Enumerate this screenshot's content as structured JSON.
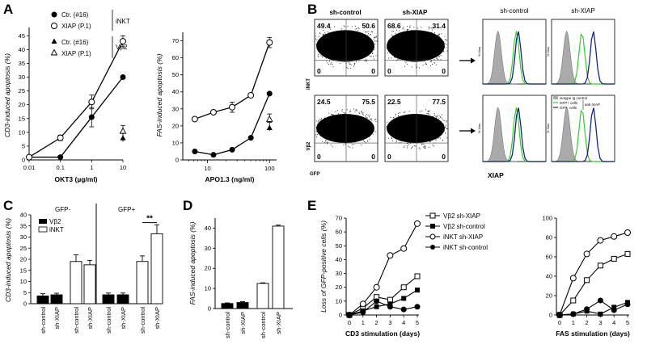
{
  "panels": {
    "A": {
      "letter": "A",
      "legend": {
        "group1": "iNKT",
        "group2": "Vβ2",
        "items": [
          "Ctr. (#16)",
          "XIAP (P.1)",
          "Ctr. (#16)",
          "XIAP (P.1)"
        ]
      },
      "left": {
        "ylabel": "CD3-induced apoptosis (%)",
        "xlabel": "OKT3 (µg/ml)",
        "xticks": [
          "0.01",
          "0.1",
          "1",
          "10"
        ],
        "yticks": [
          "0",
          "5",
          "10",
          "15",
          "20",
          "25",
          "30",
          "35",
          "40",
          "45"
        ]
      },
      "right": {
        "ylabel": "FAS-induced apoptosis (%)",
        "xlabel": "APO1.3 (ng/ml)",
        "xticks": [
          "10",
          "100"
        ],
        "yticks": [
          "0",
          "10",
          "20",
          "30",
          "40",
          "50",
          "60",
          "70"
        ]
      }
    },
    "B": {
      "letter": "B",
      "col1": "sh-control",
      "col2": "sh-XIAP",
      "row1": "iNKT",
      "row2": "Vβ2",
      "xaxis": "GFP",
      "quads": {
        "r1c1": [
          "49.4",
          "50.6",
          "0",
          "0"
        ],
        "r1c2": [
          "68.6",
          "31.4",
          "0",
          "0"
        ],
        "r2c1": [
          "24.5",
          "75.5",
          "0",
          "0"
        ],
        "r2c2": [
          "22.5",
          "77.5",
          "0",
          "0"
        ]
      },
      "hist_col1": "sh-control",
      "hist_col2": "sh-XIAP",
      "hist_y": "% Max",
      "hist_x": "XIAP",
      "hist_legend": [
        "isotype Ig control",
        "GFP+ cells",
        "GFP- cells",
        "anti-XIAP"
      ]
    },
    "C": {
      "letter": "C",
      "group_minus": "GFP-",
      "group_plus": "GFP+",
      "legend": [
        "Vβ2",
        "iNKT"
      ],
      "ylabel": "CD3-induced apoptosis (%)",
      "yticks": [
        "0",
        "5",
        "10",
        "15",
        "20",
        "25",
        "30",
        "35",
        "40"
      ],
      "xticks": [
        "sh-control",
        "sh-XIAP",
        "sh-control",
        "sh-XIAP",
        "sh-control",
        "sh-XIAP",
        "sh-control",
        "sh-XIAP"
      ],
      "sig": "**"
    },
    "D": {
      "letter": "D",
      "ylabel": "FAS-induced apoptosis (%)",
      "yticks": [
        "0",
        "10",
        "20",
        "30",
        "40"
      ],
      "xticks": [
        "sh-control",
        "sh-XIAP",
        "sh-control",
        "sh-XIAP"
      ]
    },
    "E": {
      "letter": "E",
      "ylabel": "Loss of GFP-positive cells (%)",
      "left_xlabel": "CD3 stimulation (days)",
      "right_xlabel": "FAS stimulation (days)",
      "xticks": [
        "0",
        "1",
        "2",
        "3",
        "4",
        "5"
      ],
      "left_yticks": [
        "0",
        "10",
        "20",
        "30",
        "40",
        "50",
        "60",
        "70"
      ],
      "right_yticks": [
        "0",
        "20",
        "40",
        "60",
        "80",
        "100"
      ],
      "legend": [
        "Vβ2 sh-XIAP",
        "Vβ2 sh-control",
        "iNKT sh-XIAP",
        "iNKT sh-control"
      ]
    }
  },
  "chart_data": [
    {
      "type": "line",
      "panel": "A-left",
      "x": [
        0.01,
        0.1,
        1,
        10
      ],
      "series": [
        {
          "name": "Ctr. (#16)",
          "values": [
            1,
            1,
            15.5,
            30
          ]
        },
        {
          "name": "XIAP (P.1)",
          "values": [
            1,
            8,
            21,
            43
          ]
        }
      ],
      "extra_points": [
        {
          "name": "Ctr. (#16)",
          "x": 10,
          "y": 8
        },
        {
          "name": "XIAP (P.1)",
          "x": 10,
          "y": 10.5
        }
      ],
      "ylim": [
        0,
        48
      ],
      "xlim": [
        0.01,
        10
      ],
      "xscale": "log"
    },
    {
      "type": "line",
      "panel": "A-right",
      "x": [
        6.25,
        12.5,
        25,
        50,
        100
      ],
      "series": [
        {
          "name": "Ctr. (#16)",
          "values": [
            5,
            3,
            6,
            13,
            39
          ]
        },
        {
          "name": "XIAP (P.1)",
          "values": [
            24,
            28,
            31,
            38,
            69
          ]
        }
      ],
      "extra_points": [
        {
          "name": "Ctr. (#16)",
          "x": 100,
          "y": 19
        },
        {
          "name": "XIAP (P.1)",
          "x": 100,
          "y": 24
        }
      ],
      "ylim": [
        0,
        75
      ],
      "xscale": "log"
    },
    {
      "type": "bar",
      "panel": "C",
      "categories": [
        "sh-control",
        "sh-XIAP",
        "sh-control",
        "sh-XIAP",
        "sh-control",
        "sh-XIAP",
        "sh-control",
        "sh-XIAP"
      ],
      "values": [
        3.5,
        4,
        19,
        17.5,
        4,
        4,
        19,
        31.5
      ],
      "errors": [
        1,
        0.7,
        3,
        2,
        0.8,
        0.8,
        2.5,
        4
      ],
      "colors": [
        "#000000",
        "#000000",
        "#ffffff",
        "#ffffff",
        "#000000",
        "#000000",
        "#ffffff",
        "#ffffff"
      ],
      "ylim": [
        0,
        40
      ]
    },
    {
      "type": "bar",
      "panel": "D",
      "categories": [
        "sh-control",
        "sh-XIAP",
        "sh-control",
        "sh-XIAP"
      ],
      "values": [
        2.5,
        3,
        12.5,
        41
      ],
      "errors": [
        0.3,
        0.4,
        0.3,
        0.5
      ],
      "colors": [
        "#000000",
        "#000000",
        "#ffffff",
        "#ffffff"
      ],
      "ylim": [
        0,
        45
      ]
    },
    {
      "type": "line",
      "panel": "E-left",
      "x": [
        0,
        1,
        2,
        3,
        4,
        5
      ],
      "series": [
        {
          "name": "Vβ2 sh-XIAP",
          "values": [
            0,
            5,
            13,
            11,
            20,
            28
          ]
        },
        {
          "name": "Vβ2 sh-control",
          "values": [
            0,
            3,
            6,
            8,
            12,
            18
          ]
        },
        {
          "name": "iNKT sh-XIAP",
          "values": [
            0,
            8,
            20,
            43,
            48,
            66
          ]
        },
        {
          "name": "iNKT sh-control",
          "values": [
            0,
            2,
            10,
            6,
            4,
            6
          ]
        }
      ],
      "ylim": [
        0,
        70
      ]
    },
    {
      "type": "line",
      "panel": "E-right",
      "x": [
        0,
        1,
        2,
        3,
        4,
        5
      ],
      "series": [
        {
          "name": "Vβ2 sh-XIAP",
          "values": [
            0,
            15,
            36,
            51,
            58,
            63
          ]
        },
        {
          "name": "Vβ2 sh-control",
          "values": [
            0,
            1,
            4,
            1,
            8,
            13
          ]
        },
        {
          "name": "iNKT sh-XIAP",
          "values": [
            0,
            38,
            63,
            77,
            81,
            85
          ]
        },
        {
          "name": "iNKT sh-control",
          "values": [
            0,
            1,
            6,
            15,
            5,
            11
          ]
        }
      ],
      "ylim": [
        0,
        100
      ]
    }
  ]
}
